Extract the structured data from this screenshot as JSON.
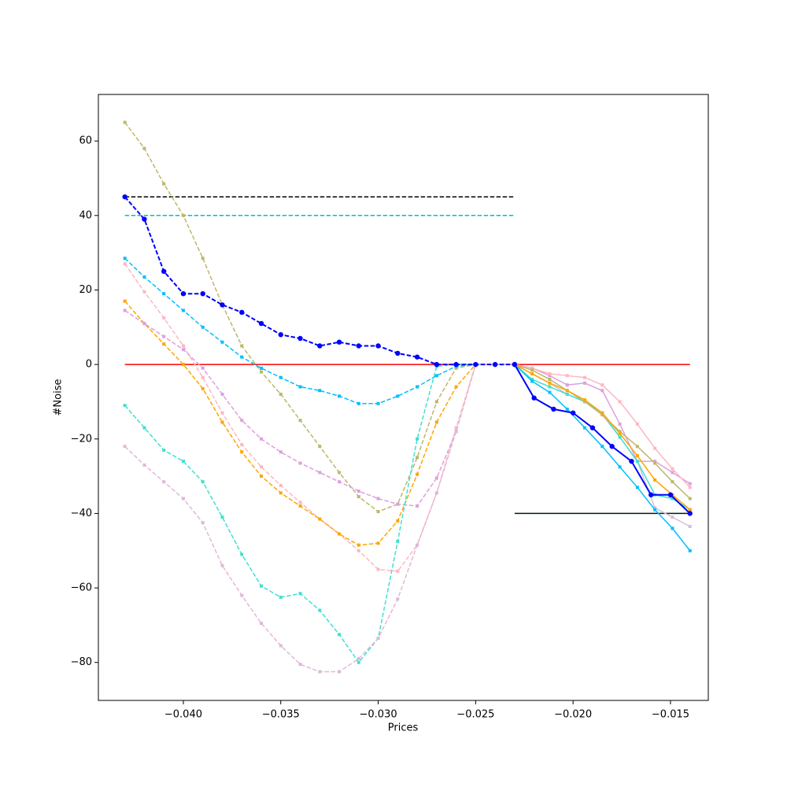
{
  "chart_data": {
    "type": "line",
    "x_label": "Prices",
    "y_label": "#Noise",
    "xlim": [
      -0.04436,
      -0.01306
    ],
    "ylim": [
      -90.2,
      72.5
    ],
    "xticks": [
      {
        "value": -0.04,
        "label": "−0.040"
      },
      {
        "value": -0.035,
        "label": "−0.035"
      },
      {
        "value": -0.03,
        "label": "−0.030"
      },
      {
        "value": -0.025,
        "label": "−0.025"
      },
      {
        "value": -0.02,
        "label": "−0.020"
      },
      {
        "value": -0.015,
        "label": "−0.015"
      }
    ],
    "yticks": [
      {
        "value": -80,
        "label": "−80"
      },
      {
        "value": -60,
        "label": "−60"
      },
      {
        "value": -40,
        "label": "−40"
      },
      {
        "value": -20,
        "label": "−20"
      },
      0,
      20,
      40,
      60
    ],
    "series": [
      {
        "color": "#000000",
        "linestyle": "dashed",
        "marker": "none",
        "x": [
          -0.043,
          -0.023
        ],
        "values": [
          45,
          45
        ]
      },
      {
        "color": "#00bfc4",
        "linestyle": "dashed",
        "marker": "none",
        "x": [
          -0.043,
          -0.023
        ],
        "values": [
          40,
          40
        ]
      },
      {
        "color": "#ff0000",
        "linestyle": "solid",
        "marker": "none",
        "x": [
          -0.043,
          -0.014
        ],
        "values": [
          0,
          0
        ]
      },
      {
        "color": "#001a1a",
        "linestyle": "solid",
        "marker": "none",
        "x": [
          -0.023,
          -0.014
        ],
        "values": [
          -40,
          -40
        ]
      },
      {
        "color": "#bdb76b",
        "linestyle": "dashed",
        "marker": "square",
        "x": [
          -0.043,
          -0.042,
          -0.041,
          -0.04,
          -0.039,
          -0.038,
          -0.037,
          -0.036,
          -0.035,
          -0.034,
          -0.033,
          -0.032,
          -0.031,
          -0.03,
          -0.029,
          -0.028,
          -0.027,
          -0.026,
          -0.025,
          -0.024,
          -0.023
        ],
        "values": [
          65,
          58,
          48.5,
          40,
          28.5,
          16,
          5,
          -2,
          -8,
          -15,
          -22,
          -29,
          -35.5,
          -39.5,
          -37.5,
          -25,
          -10,
          -1,
          0,
          0,
          0
        ]
      },
      {
        "color": "#00bfff",
        "linestyle": "dashed",
        "marker": "square",
        "x": [
          -0.043,
          -0.042,
          -0.041,
          -0.04,
          -0.039,
          -0.038,
          -0.037,
          -0.036,
          -0.035,
          -0.034,
          -0.033,
          -0.032,
          -0.031,
          -0.03,
          -0.029,
          -0.028,
          -0.027,
          -0.026,
          -0.025,
          -0.024,
          -0.023
        ],
        "values": [
          28.5,
          23.5,
          19,
          14.5,
          10,
          6,
          2,
          -1,
          -3.5,
          -6,
          -7,
          -8.5,
          -10.5,
          -10.5,
          -8.5,
          -6,
          -3,
          -0.5,
          0,
          0,
          0
        ]
      },
      {
        "color": "#ffb6c1",
        "linestyle": "dashed",
        "marker": "square",
        "x": [
          -0.043,
          -0.042,
          -0.041,
          -0.04,
          -0.039,
          -0.038,
          -0.037,
          -0.036,
          -0.035,
          -0.034,
          -0.033,
          -0.032,
          -0.031,
          -0.03,
          -0.029,
          -0.028,
          -0.027,
          -0.026,
          -0.025,
          -0.024,
          -0.023
        ],
        "values": [
          27,
          19.5,
          12.5,
          5,
          -3.5,
          -13,
          -21.5,
          -27.5,
          -32.5,
          -37,
          -41.5,
          -45.5,
          -50,
          -55,
          -55.5,
          -48.5,
          -34.5,
          -17,
          0,
          0,
          0
        ]
      },
      {
        "color": "#ffa500",
        "linestyle": "dashed",
        "marker": "square",
        "x": [
          -0.043,
          -0.042,
          -0.041,
          -0.04,
          -0.039,
          -0.038,
          -0.037,
          -0.036,
          -0.035,
          -0.034,
          -0.033,
          -0.032,
          -0.031,
          -0.03,
          -0.029,
          -0.028,
          -0.027,
          -0.026,
          -0.025,
          -0.024,
          -0.023
        ],
        "values": [
          17,
          11,
          5.5,
          0,
          -6.5,
          -15.5,
          -23.5,
          -30,
          -34.5,
          -38,
          -41.5,
          -45.5,
          -48.5,
          -48,
          -42,
          -29.5,
          -15.5,
          -6,
          0,
          0,
          0
        ]
      },
      {
        "color": "#dda0dd",
        "linestyle": "dashed",
        "marker": "square",
        "x": [
          -0.043,
          -0.042,
          -0.041,
          -0.04,
          -0.039,
          -0.038,
          -0.037,
          -0.036,
          -0.035,
          -0.034,
          -0.033,
          -0.032,
          -0.031,
          -0.03,
          -0.029,
          -0.028,
          -0.027,
          -0.026,
          -0.025,
          -0.024,
          -0.023
        ],
        "values": [
          14.5,
          11,
          7.5,
          4,
          -1,
          -8,
          -15,
          -20,
          -23.5,
          -26.5,
          -29,
          -31.5,
          -34,
          -36,
          -37.5,
          -38,
          -30.5,
          -18,
          0,
          0,
          0
        ]
      },
      {
        "color": "#40e0d0",
        "linestyle": "dashed",
        "marker": "square",
        "x": [
          -0.043,
          -0.042,
          -0.041,
          -0.04,
          -0.039,
          -0.038,
          -0.037,
          -0.036,
          -0.035,
          -0.034,
          -0.033,
          -0.032,
          -0.031,
          -0.03,
          -0.029,
          -0.028,
          -0.027,
          -0.026,
          -0.025,
          -0.024,
          -0.023
        ],
        "values": [
          -11,
          -17,
          -23,
          -26,
          -31.5,
          -41,
          -51,
          -59.5,
          -62.5,
          -61.5,
          -66,
          -72.5,
          -80,
          -73.5,
          -47.5,
          -20,
          -0.5,
          0,
          0,
          0,
          0
        ]
      },
      {
        "color": "#e0b8d8",
        "linestyle": "dashed",
        "marker": "square",
        "x": [
          -0.043,
          -0.042,
          -0.041,
          -0.04,
          -0.039,
          -0.038,
          -0.037,
          -0.036,
          -0.035,
          -0.034,
          -0.033,
          -0.032,
          -0.031,
          -0.03,
          -0.029,
          -0.028,
          -0.027,
          -0.026,
          -0.025,
          -0.024,
          -0.023
        ],
        "values": [
          -22,
          -27,
          -31.5,
          -36,
          -42.5,
          -54,
          -62,
          -69.5,
          -75.5,
          -80.5,
          -82.5,
          -82.5,
          -79,
          -73.5,
          -63,
          -48.5,
          -34.5,
          -18,
          0,
          0,
          0
        ]
      },
      {
        "color": "#0000ff",
        "linestyle": "dashed",
        "marker": "circle",
        "x": [
          -0.043,
          -0.042,
          -0.041,
          -0.04,
          -0.039,
          -0.038,
          -0.037,
          -0.036,
          -0.035,
          -0.034,
          -0.033,
          -0.032,
          -0.031,
          -0.03,
          -0.029,
          -0.028,
          -0.027,
          -0.026,
          -0.025,
          -0.024,
          -0.023
        ],
        "values": [
          45,
          39,
          25,
          19,
          19,
          16,
          14,
          11,
          8,
          7,
          5,
          6,
          5,
          5,
          3,
          2,
          0,
          0,
          0,
          0,
          0
        ]
      },
      {
        "color": "#d8bfd8",
        "linestyle": "solid",
        "marker": "square",
        "x": [
          -0.023,
          -0.0221,
          -0.0212,
          -0.0203,
          -0.0194,
          -0.0185,
          -0.0176,
          -0.0167,
          -0.0158,
          -0.0149,
          -0.014
        ],
        "values": [
          0,
          -2.5,
          -5,
          -8,
          -10,
          -13.5,
          -19.5,
          -26,
          -38.5,
          -41,
          -43.5
        ]
      },
      {
        "color": "#dda0dd",
        "linestyle": "solid",
        "marker": "square",
        "x": [
          -0.023,
          -0.0221,
          -0.0212,
          -0.0203,
          -0.0194,
          -0.0185,
          -0.0176,
          -0.0167,
          -0.0158,
          -0.0149,
          -0.014
        ],
        "values": [
          0,
          -1,
          -3,
          -5.5,
          -5,
          -7,
          -16,
          -26,
          -26,
          -29,
          -32
        ]
      },
      {
        "color": "#ffb6c1",
        "linestyle": "solid",
        "marker": "square",
        "x": [
          -0.023,
          -0.0221,
          -0.0212,
          -0.0203,
          -0.0194,
          -0.0185,
          -0.0176,
          -0.0167,
          -0.0158,
          -0.0149,
          -0.014
        ],
        "values": [
          0,
          -1,
          -2.5,
          -3,
          -3.5,
          -5.5,
          -10,
          -16,
          -22.5,
          -28,
          -33
        ]
      },
      {
        "color": "#40e0d0",
        "linestyle": "solid",
        "marker": "square",
        "x": [
          -0.023,
          -0.0221,
          -0.0212,
          -0.0203,
          -0.0194,
          -0.0185,
          -0.0176,
          -0.0167,
          -0.0158,
          -0.0149,
          -0.014
        ],
        "values": [
          0,
          -4,
          -6,
          -8,
          -10,
          -13,
          -19.5,
          -26,
          -35,
          -36,
          -39
        ]
      },
      {
        "color": "#00bfff",
        "linestyle": "solid",
        "marker": "square",
        "x": [
          -0.023,
          -0.0221,
          -0.0212,
          -0.0203,
          -0.0194,
          -0.0185,
          -0.0176,
          -0.0167,
          -0.0158,
          -0.0149,
          -0.014
        ],
        "values": [
          0,
          -4.5,
          -7.5,
          -12,
          -17,
          -22,
          -27.5,
          -33,
          -39,
          -44,
          -50
        ]
      },
      {
        "color": "#bdb76b",
        "linestyle": "solid",
        "marker": "square",
        "x": [
          -0.023,
          -0.0221,
          -0.0212,
          -0.0203,
          -0.0194,
          -0.0185,
          -0.0176,
          -0.0167,
          -0.0158,
          -0.0149,
          -0.014
        ],
        "values": [
          0,
          -1.5,
          -4,
          -7,
          -10,
          -13.5,
          -18,
          -22,
          -26.5,
          -31.5,
          -36
        ]
      },
      {
        "color": "#ffa500",
        "linestyle": "solid",
        "marker": "square",
        "x": [
          -0.023,
          -0.0221,
          -0.0212,
          -0.0203,
          -0.0194,
          -0.0185,
          -0.0176,
          -0.0167,
          -0.0158,
          -0.0149,
          -0.014
        ],
        "values": [
          0,
          -2.5,
          -5,
          -7,
          -9.5,
          -13,
          -18.5,
          -24.5,
          -31,
          -35,
          -39
        ]
      },
      {
        "color": "#0000ff",
        "linestyle": "solid",
        "marker": "circle",
        "x": [
          -0.023,
          -0.022,
          -0.021,
          -0.02,
          -0.019,
          -0.018,
          -0.017,
          -0.016,
          -0.015,
          -0.014
        ],
        "values": [
          0,
          -9,
          -12,
          -13,
          -17,
          -22,
          -26,
          -35,
          -35,
          -40
        ]
      }
    ]
  }
}
